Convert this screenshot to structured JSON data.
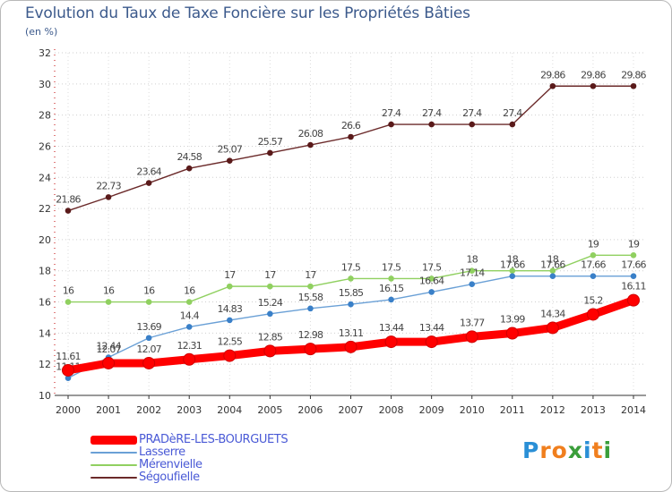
{
  "title": "Evolution du Taux de Taxe Foncière sur les Propriétés Bâties",
  "unit": "(en %)",
  "logo": {
    "letters": [
      "P",
      "r",
      "o",
      "x",
      "i",
      "t",
      "i"
    ],
    "colors": [
      "#2a8fd6",
      "#f07f1e",
      "#f07f1e",
      "#3a9e3a",
      "#2a8fd6",
      "#f07f1e",
      "#3a9e3a"
    ]
  },
  "legend": [
    {
      "label": "PRADèRE-LES-BOURGUETS",
      "color": "#ff0000",
      "textColor": "#4a5ad6"
    },
    {
      "label": "Lasserre",
      "color": "#6aa0d6",
      "textColor": "#4a5ad6"
    },
    {
      "label": "Mérenvielle",
      "color": "#90d060",
      "textColor": "#4a5ad6"
    },
    {
      "label": "Ségoufielle",
      "color": "#6b2a2a",
      "textColor": "#4a5ad6"
    }
  ],
  "chart_data": {
    "type": "line",
    "title": "Evolution du Taux de Taxe Foncière sur les Propriétés Bâties",
    "ylabel": "(en %)",
    "xlabel": "",
    "ylim": [
      10,
      32
    ],
    "yticks": [
      "10",
      "12",
      "14",
      "16",
      "18",
      "20",
      "22",
      "24",
      "26",
      "28",
      "30",
      "32"
    ],
    "categories": [
      "2000",
      "2001",
      "2002",
      "2003",
      "2004",
      "2005",
      "2006",
      "2007",
      "2008",
      "2009",
      "2010",
      "2011",
      "2012",
      "2013",
      "2014"
    ],
    "series": [
      {
        "name": "Ségoufielle",
        "color": "#6b2a2a",
        "marker": "#5a1a1a",
        "values": [
          21.86,
          22.73,
          23.64,
          24.58,
          25.07,
          25.57,
          26.08,
          26.6,
          27.4,
          27.4,
          27.4,
          27.4,
          29.86,
          29.86,
          29.86
        ],
        "labels": [
          "21.86",
          "22.73",
          "23.64",
          "24.58",
          "25.07",
          "25.57",
          "26.08",
          "26.6",
          "27.4",
          "27.4",
          "27.4",
          "27.4",
          "29.86",
          "29.86",
          "29.86"
        ]
      },
      {
        "name": "Mérenvielle",
        "color": "#90d060",
        "marker": "#90d060",
        "values": [
          16,
          16,
          16,
          16,
          17,
          17,
          17,
          17.5,
          17.5,
          17.5,
          18,
          18,
          18,
          19,
          19
        ],
        "labels": [
          "16",
          "16",
          "16",
          "16",
          "17",
          "17",
          "17",
          "17.5",
          "17.5",
          "17.5",
          "18",
          "18",
          "18",
          "19",
          "19"
        ]
      },
      {
        "name": "Lasserre",
        "color": "#6aa0d6",
        "marker": "#3a80c8",
        "values": [
          11.11,
          12.44,
          13.69,
          14.4,
          14.83,
          15.24,
          15.58,
          15.85,
          16.15,
          16.64,
          17.14,
          17.66,
          17.66,
          17.66,
          17.66
        ],
        "labels": [
          "11.11",
          "12.44",
          "13.69",
          "14.4",
          "14.83",
          "15.24",
          "15.58",
          "15.85",
          "16.15",
          "16.64",
          "17.14",
          "17.66",
          "17.66",
          "17.66",
          "17.66"
        ]
      },
      {
        "name": "PRADèRE-LES-BOURGUETS",
        "color": "#ff0000",
        "marker": "#ff0000",
        "values": [
          11.61,
          12.07,
          12.07,
          12.31,
          12.55,
          12.85,
          12.98,
          13.11,
          13.44,
          13.44,
          13.77,
          13.99,
          14.34,
          15.2,
          16.11
        ],
        "labels": [
          "11.61",
          "12.07",
          "12.07",
          "12.31",
          "12.55",
          "12.85",
          "12.98",
          "13.11",
          "13.44",
          "13.44",
          "13.77",
          "13.99",
          "14.34",
          "15.2",
          "16.11"
        ]
      }
    ]
  }
}
